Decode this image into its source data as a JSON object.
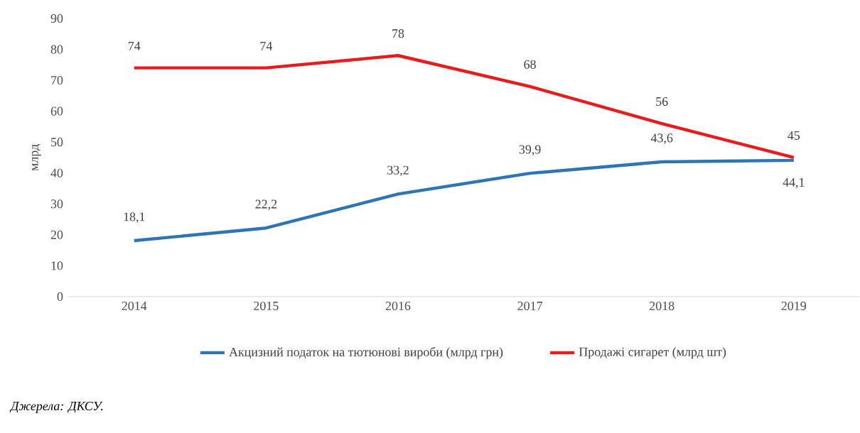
{
  "chart_data": {
    "type": "line",
    "ylabel": "млрд",
    "categories": [
      "2014",
      "2015",
      "2016",
      "2017",
      "2018",
      "2019"
    ],
    "series": [
      {
        "name": "Акцизний податок на тютюнові вироби (млрд грн)",
        "color": "#2e75b6",
        "values": [
          18.1,
          22.2,
          33.2,
          39.9,
          43.6,
          44.1
        ],
        "value_labels": [
          "18,1",
          "22,2",
          "33,2",
          "39,9",
          "43,6",
          "44,1"
        ]
      },
      {
        "name": "Продажі сигарет (млрд шт)",
        "color": "#e81c1c",
        "values": [
          74,
          74,
          78,
          68,
          56,
          45
        ],
        "value_labels": [
          "74",
          "74",
          "78",
          "68",
          "56",
          "45"
        ]
      }
    ],
    "ylim": [
      0,
      90
    ],
    "yticks": [
      0,
      10,
      20,
      30,
      40,
      50,
      60,
      70,
      80,
      90
    ],
    "grid": false,
    "legend": "bottom",
    "marker": "none",
    "line_style": "solid",
    "annotations": [
      "*Джерела: ДКСУ.*"
    ]
  }
}
